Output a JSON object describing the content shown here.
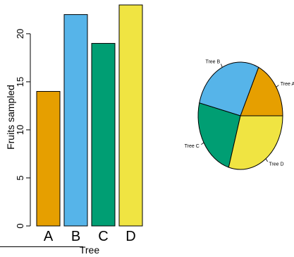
{
  "chart_data": [
    {
      "type": "bar",
      "categories": [
        "A",
        "B",
        "C",
        "D"
      ],
      "values": [
        14,
        22,
        19,
        23
      ],
      "colors": [
        "#E69F00",
        "#56B4E9",
        "#009E73",
        "#F0E442"
      ],
      "xlabel": "Tree",
      "ylabel": "Fruits sampled",
      "yticks": [
        "0",
        "5",
        "10",
        "15",
        "20"
      ],
      "ylim": [
        0,
        23
      ],
      "grid": false
    },
    {
      "type": "pie",
      "labels": [
        "Tree A",
        "Tree B",
        "Tree C",
        "Tree D"
      ],
      "values": [
        14,
        22,
        19,
        23
      ],
      "colors": [
        "#E69F00",
        "#56B4E9",
        "#009E73",
        "#F0E442"
      ]
    }
  ]
}
